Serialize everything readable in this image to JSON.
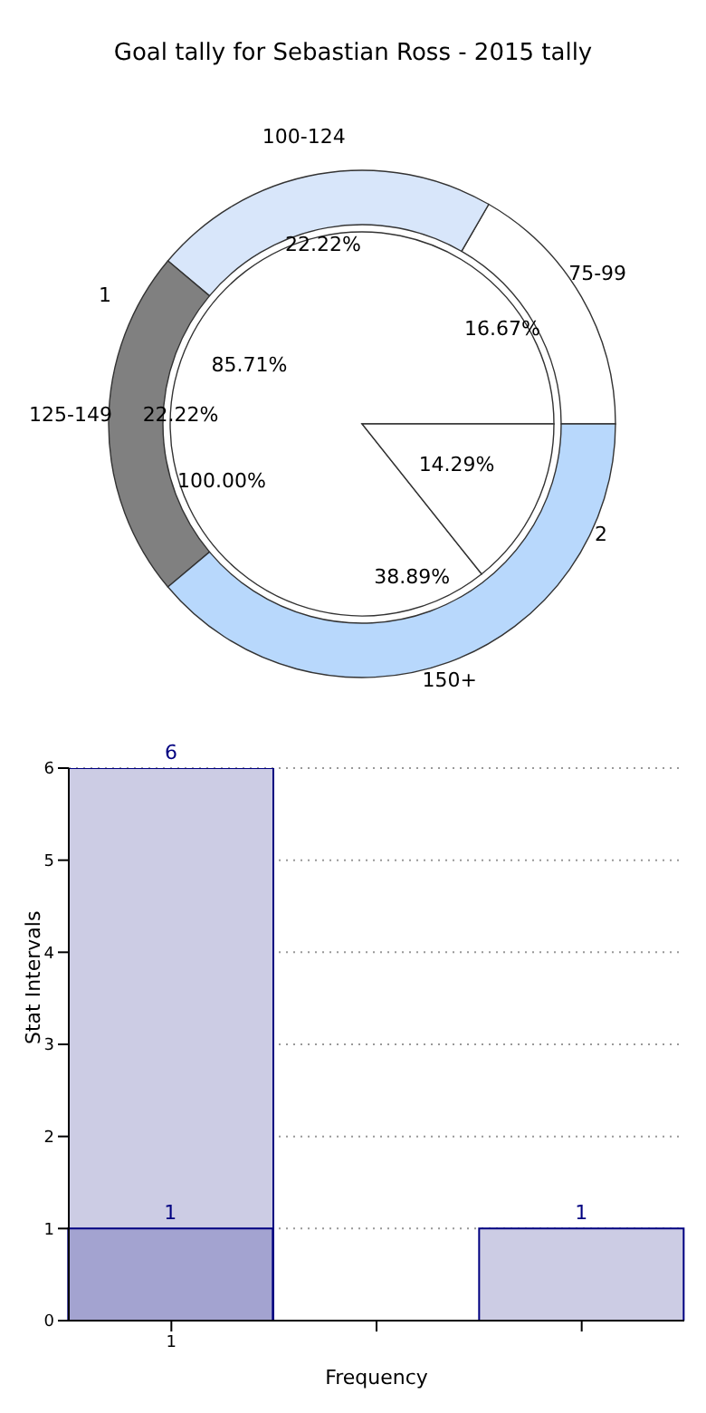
{
  "chart_data": [
    {
      "type": "pie",
      "title": "Goal tally for Sebastian Ross - 2015 tally",
      "annotations": [
        "100.00%"
      ],
      "categories": [
        "1",
        "2"
      ],
      "values": [
        85.71,
        14.29
      ],
      "colors": [
        "#ffffff",
        "#ffffff"
      ],
      "value_labels": [
        "85.71%",
        "14.29%"
      ]
    },
    {
      "type": "donut",
      "categories": [
        "75-99",
        "100-124",
        "125-149",
        "150+"
      ],
      "values": [
        16.67,
        22.22,
        22.22,
        38.89
      ],
      "colors": [
        "#ffffff",
        "#d8e6fa",
        "#808080",
        "#b8d8fc"
      ],
      "value_labels": [
        "16.67%",
        "22.22%",
        "22.22%",
        "38.89%"
      ]
    },
    {
      "type": "bar",
      "xlabel": "Frequency",
      "ylabel": "Stat Intervals",
      "categories": [
        "1",
        null,
        null
      ],
      "ylim": [
        0,
        6
      ],
      "yticks": [
        0,
        1,
        2,
        3,
        4,
        5,
        6
      ],
      "grid": true,
      "data_labels": true,
      "series": [
        {
          "color": "#ccccE4",
          "values": [
            6,
            null,
            1
          ]
        },
        {
          "color": "#a3a3d0",
          "values": [
            1,
            null,
            null
          ]
        }
      ]
    }
  ]
}
